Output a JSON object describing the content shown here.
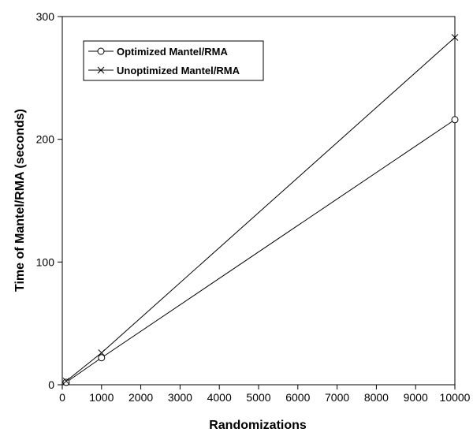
{
  "chart_data": {
    "type": "line",
    "title": "",
    "xlabel": "Randomizations",
    "ylabel": "Time of Mantel/RMA (seconds)",
    "xlim": [
      0,
      10000
    ],
    "ylim": [
      0,
      300
    ],
    "xticks": [
      0,
      1000,
      2000,
      3000,
      4000,
      5000,
      6000,
      7000,
      8000,
      9000,
      10000
    ],
    "yticks": [
      0,
      100,
      200,
      300
    ],
    "grid": false,
    "legend_position": "top-left",
    "series": [
      {
        "name": "Optimized Mantel/RMA",
        "marker": "circle",
        "color": "#000000",
        "x": [
          100,
          1000,
          10000
        ],
        "y": [
          2,
          22,
          216
        ]
      },
      {
        "name": "Unoptimized Mantel/RMA",
        "marker": "x",
        "color": "#000000",
        "x": [
          100,
          1000,
          10000
        ],
        "y": [
          3,
          26,
          283
        ]
      }
    ]
  }
}
